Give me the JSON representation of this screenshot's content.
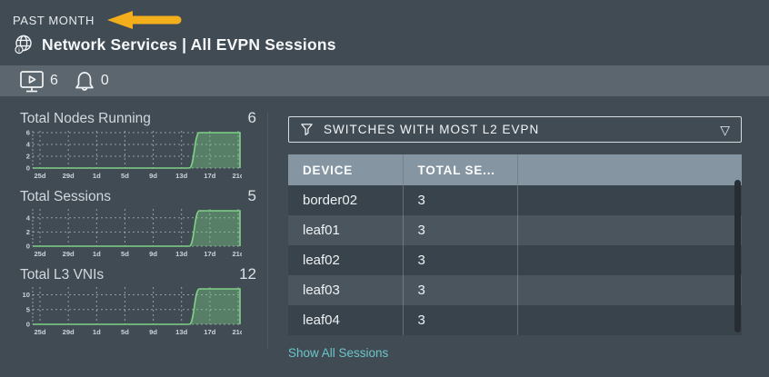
{
  "header": {
    "time_range": "PAST MONTH",
    "title": "Network Services | All EVPN Sessions"
  },
  "toolbar": {
    "validation_count": "6",
    "alarm_count": "0"
  },
  "panel": {
    "dropdown_label": "SWITCHES WITH MOST L2 EVPN",
    "chevron_glyph": "▽",
    "footer_link": "Show All Sessions",
    "table": {
      "columns": [
        "DEVICE",
        "TOTAL SE...",
        ""
      ],
      "rows": [
        [
          "border02",
          "3"
        ],
        [
          "leaf01",
          "3"
        ],
        [
          "leaf02",
          "3"
        ],
        [
          "leaf03",
          "3"
        ],
        [
          "leaf04",
          "3"
        ]
      ]
    }
  },
  "chart_data": [
    {
      "type": "area",
      "title": "Total Nodes Running",
      "value": "6",
      "categories": [
        "25d",
        "29d",
        "1d",
        "5d",
        "9d",
        "13d",
        "17d",
        "21d"
      ],
      "yticks": [
        6,
        4,
        2,
        0
      ],
      "ymax": 6,
      "series": [
        {
          "name": "Total Nodes Running",
          "values": [
            0,
            0,
            0,
            0,
            0,
            0,
            6,
            6
          ]
        }
      ],
      "step_between": [
        "13d",
        "17d"
      ],
      "grid": true,
      "legend": "none"
    },
    {
      "type": "area",
      "title": "Total Sessions",
      "value": "5",
      "categories": [
        "25d",
        "29d",
        "1d",
        "5d",
        "9d",
        "13d",
        "17d",
        "21d"
      ],
      "yticks": [
        4,
        2,
        0
      ],
      "ymax": 5,
      "series": [
        {
          "name": "Total Sessions",
          "values": [
            0,
            0,
            0,
            0,
            0,
            0,
            5,
            5
          ]
        }
      ],
      "step_between": [
        "13d",
        "17d"
      ],
      "grid": true,
      "legend": "none"
    },
    {
      "type": "area",
      "title": "Total L3 VNIs",
      "value": "12",
      "categories": [
        "25d",
        "29d",
        "1d",
        "5d",
        "9d",
        "13d",
        "17d",
        "21d"
      ],
      "yticks": [
        10,
        5,
        0
      ],
      "ymax": 12,
      "series": [
        {
          "name": "Total L3 VNIs",
          "values": [
            0,
            0,
            0,
            0,
            0,
            0,
            12,
            12
          ]
        }
      ],
      "step_between": [
        "13d",
        "17d"
      ],
      "grid": true,
      "legend": "none"
    }
  ],
  "colors": {
    "background": "#404B54",
    "toolbar": "#5C666F",
    "table_header": "#8596A2",
    "row_dark": "#38434C",
    "row_light": "#4A555E",
    "chart_stroke": "#7FD286",
    "chart_fill": "rgba(127,210,134,0.38)",
    "arrow": "#F3AE1C",
    "link": "#6CC5C8"
  }
}
